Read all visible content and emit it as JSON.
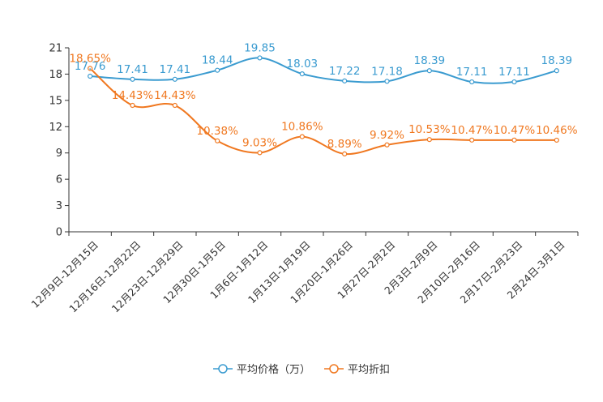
{
  "chart_data": {
    "type": "line",
    "categories": [
      "12月9日-12月15日",
      "12月16日-12月22日",
      "12月23日-12月29日",
      "12月30日-1月5日",
      "1月6日-1月12日",
      "1月13日-1月19日",
      "1月20日-1月26日",
      "1月27日-2月2日",
      "2月3日-2月9日",
      "2月10日-2月16日",
      "2月17日-2月23日",
      "2月24日-3月1日"
    ],
    "ylim": [
      0,
      21
    ],
    "yticks": [
      0,
      3,
      6,
      9,
      12,
      15,
      18,
      21
    ],
    "smooth": true,
    "series": [
      {
        "name": "平均价格（万）",
        "color": "#3a9bd0",
        "values": [
          17.76,
          17.41,
          17.41,
          18.44,
          19.85,
          18.03,
          17.22,
          17.18,
          18.39,
          17.11,
          17.11,
          18.39
        ],
        "labels": [
          "17.76",
          "17.41",
          "17.41",
          "18.44",
          "19.85",
          "18.03",
          "17.22",
          "17.18",
          "18.39",
          "17.11",
          "17.11",
          "18.39"
        ]
      },
      {
        "name": "平均折扣",
        "color": "#f07820",
        "values": [
          18.65,
          14.43,
          14.43,
          10.38,
          9.03,
          10.86,
          8.89,
          9.92,
          10.53,
          10.47,
          10.47,
          10.46
        ],
        "labels": [
          "18.65%",
          "14.43%",
          "14.43%",
          "10.38%",
          "9.03%",
          "10.86%",
          "8.89%",
          "9.92%",
          "10.53%",
          "10.47%",
          "10.47%",
          "10.46%"
        ]
      }
    ],
    "legend_position": "bottom-center"
  }
}
